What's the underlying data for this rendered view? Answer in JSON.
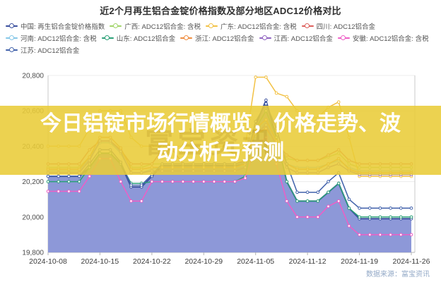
{
  "page": {
    "title": "近2个月再生铝合金锭价格指数及部分地区ADC12价格对比"
  },
  "overlay": {
    "headline": "今日铝锭市场行情概览，价格走势、波动分析与预测",
    "watermark": "富宝资讯",
    "band_color": "rgba(233,204,56,0.88)"
  },
  "footer": {
    "source": "数据来源：富宝资讯"
  },
  "chart_data": {
    "type": "line",
    "title": "近2个月再生铝合金锭价格指数及部分地区ADC12价格对比",
    "legend_position": "top",
    "grid": true,
    "ylim": [
      19800,
      20800
    ],
    "yticks": [
      {
        "value": 20800,
        "label": "20,800"
      },
      {
        "value": 20600,
        "label": "20,600"
      },
      {
        "value": 20400,
        "label": "20,400"
      },
      {
        "value": 20200,
        "label": "20,200"
      },
      {
        "value": 20000,
        "label": "20,000"
      },
      {
        "value": 19800,
        "label": "19,800"
      }
    ],
    "x": [
      "2024-10-08",
      "2024-10-09",
      "2024-10-10",
      "2024-10-11",
      "2024-10-14",
      "2024-10-15",
      "2024-10-16",
      "2024-10-17",
      "2024-10-18",
      "2024-10-21",
      "2024-10-22",
      "2024-10-23",
      "2024-10-24",
      "2024-10-25",
      "2024-10-28",
      "2024-10-29",
      "2024-10-30",
      "2024-10-31",
      "2024-11-01",
      "2024-11-04",
      "2024-11-05",
      "2024-11-06",
      "2024-11-07",
      "2024-11-08",
      "2024-11-11",
      "2024-11-12",
      "2024-11-13",
      "2024-11-14",
      "2024-11-15",
      "2024-11-18",
      "2024-11-19",
      "2024-11-20",
      "2024-11-21",
      "2024-11-22",
      "2024-11-25",
      "2024-11-26"
    ],
    "xtick_indices": [
      0,
      5,
      10,
      15,
      20,
      25,
      30,
      35
    ],
    "series": [
      {
        "name": "中国: 再生铝合金锭价格指数",
        "color": "#3a4f9e",
        "fill": "#8d98d8",
        "type": "area",
        "legend_row": 0,
        "values": [
          20230,
          20230,
          20230,
          20230,
          20280,
          20360,
          20360,
          20300,
          20170,
          20170,
          20230,
          20290,
          20290,
          20290,
          20290,
          20290,
          20290,
          20290,
          20290,
          20300,
          20520,
          20660,
          20450,
          20200,
          20090,
          20090,
          20090,
          20140,
          20190,
          20050,
          19990,
          19990,
          19990,
          19990,
          19990,
          19990
        ]
      },
      {
        "name": "广西: ADC12铝合金: 含税",
        "color": "#a0d468",
        "type": "line",
        "legend_row": 0,
        "values": [
          20280,
          20280,
          20280,
          20280,
          20340,
          20420,
          20420,
          20380,
          20280,
          20280,
          20300,
          20300,
          20300,
          20300,
          20300,
          20300,
          20300,
          20300,
          20300,
          20310,
          20460,
          20500,
          20400,
          20330,
          20320,
          20320,
          20320,
          20340,
          20360,
          20300,
          20280,
          20280,
          20280,
          20280,
          20280,
          20280
        ]
      },
      {
        "name": "广东: ADC12铝合金: 含税",
        "color": "#f2c144",
        "type": "line",
        "legend_row": 0,
        "values": [
          20400,
          20400,
          20400,
          20400,
          20500,
          20600,
          20600,
          20600,
          20450,
          20400,
          20400,
          20400,
          20400,
          20400,
          20400,
          20400,
          20400,
          20400,
          20350,
          20400,
          20790,
          20790,
          20700,
          20680,
          20600,
          20560,
          20560,
          20620,
          20650,
          20450,
          20230,
          20230,
          20230,
          20230,
          20230,
          20230
        ]
      },
      {
        "name": "四川: ADC12铝合金",
        "color": "#dd5f5b",
        "type": "line",
        "legend_row": 0,
        "values": [
          20300,
          20300,
          20300,
          20300,
          20380,
          20430,
          20430,
          20380,
          20300,
          20300,
          20300,
          20380,
          20380,
          20300,
          20300,
          20300,
          20300,
          20300,
          20300,
          20320,
          20470,
          20500,
          20420,
          20350,
          20320,
          20320,
          20320,
          20350,
          20380,
          20320,
          20300,
          20300,
          20300,
          20300,
          20300,
          20300
        ]
      },
      {
        "name": "河南: ADC12铝合金: 含税",
        "color": "#85c7e8",
        "type": "line",
        "legend_row": 1,
        "values": [
          20260,
          20260,
          20260,
          20260,
          20330,
          20420,
          20420,
          20360,
          20250,
          20250,
          20270,
          20280,
          20280,
          20280,
          20280,
          20280,
          20280,
          20280,
          20280,
          20290,
          20470,
          20550,
          20420,
          20300,
          20280,
          20280,
          20280,
          20300,
          20320,
          20280,
          20260,
          20260,
          20260,
          20260,
          20260,
          20260
        ]
      },
      {
        "name": "山东: ADC12铝合金",
        "color": "#2aa077",
        "type": "line",
        "legend_row": 1,
        "values": [
          20200,
          20200,
          20200,
          20200,
          20280,
          20360,
          20360,
          20300,
          20190,
          20190,
          20200,
          20200,
          20200,
          20200,
          20200,
          20200,
          20200,
          20200,
          20200,
          20230,
          20500,
          20600,
          20450,
          20200,
          20090,
          20090,
          20090,
          20140,
          20190,
          20050,
          20000,
          20000,
          20000,
          20000,
          20000,
          20000
        ]
      },
      {
        "name": "浙江: ADC12铝合金",
        "color": "#ef8c3e",
        "type": "line",
        "legend_row": 1,
        "values": [
          20270,
          20270,
          20270,
          20270,
          20340,
          20450,
          20450,
          20390,
          20270,
          20270,
          20280,
          20280,
          20280,
          20280,
          20280,
          20280,
          20280,
          20280,
          20280,
          20300,
          20500,
          20550,
          20430,
          20300,
          20270,
          20270,
          20270,
          20300,
          20330,
          20270,
          20250,
          20250,
          20250,
          20250,
          20250,
          20250
        ]
      },
      {
        "name": "江西: ADC12铝合金",
        "color": "#8f62c0",
        "type": "line",
        "legend_row": 1,
        "values": [
          20250,
          20250,
          20250,
          20250,
          20320,
          20430,
          20430,
          20370,
          20250,
          20250,
          20260,
          20260,
          20260,
          20260,
          20260,
          20260,
          20260,
          20260,
          20260,
          20280,
          20470,
          20520,
          20400,
          20280,
          20250,
          20250,
          20250,
          20280,
          20300,
          20260,
          20240,
          20240,
          20240,
          20240,
          20240,
          20240
        ]
      },
      {
        "name": "安徽: ADC12铝合金: 含税",
        "color": "#ee5ec6",
        "type": "line",
        "legend_row": 1,
        "values": [
          20145,
          20145,
          20145,
          20145,
          20230,
          20330,
          20330,
          20200,
          20090,
          20090,
          20200,
          20200,
          20200,
          20200,
          20200,
          20200,
          20200,
          20200,
          20200,
          20220,
          20400,
          20450,
          20300,
          20090,
          20000,
          20000,
          20000,
          20060,
          20090,
          19950,
          19900,
          19900,
          19900,
          19900,
          19900,
          19900
        ]
      },
      {
        "name": "江苏: ADC12铝合金",
        "color": "#4262ab",
        "type": "line",
        "legend_row": 2,
        "values": [
          20230,
          20230,
          20230,
          20230,
          20300,
          20380,
          20380,
          20310,
          20180,
          20180,
          20240,
          20300,
          20300,
          20300,
          20300,
          20300,
          20300,
          20300,
          20300,
          20310,
          20540,
          20640,
          20500,
          20300,
          20140,
          20140,
          20140,
          20200,
          20250,
          20100,
          20050,
          20050,
          20050,
          20050,
          20050,
          20050
        ]
      }
    ]
  }
}
